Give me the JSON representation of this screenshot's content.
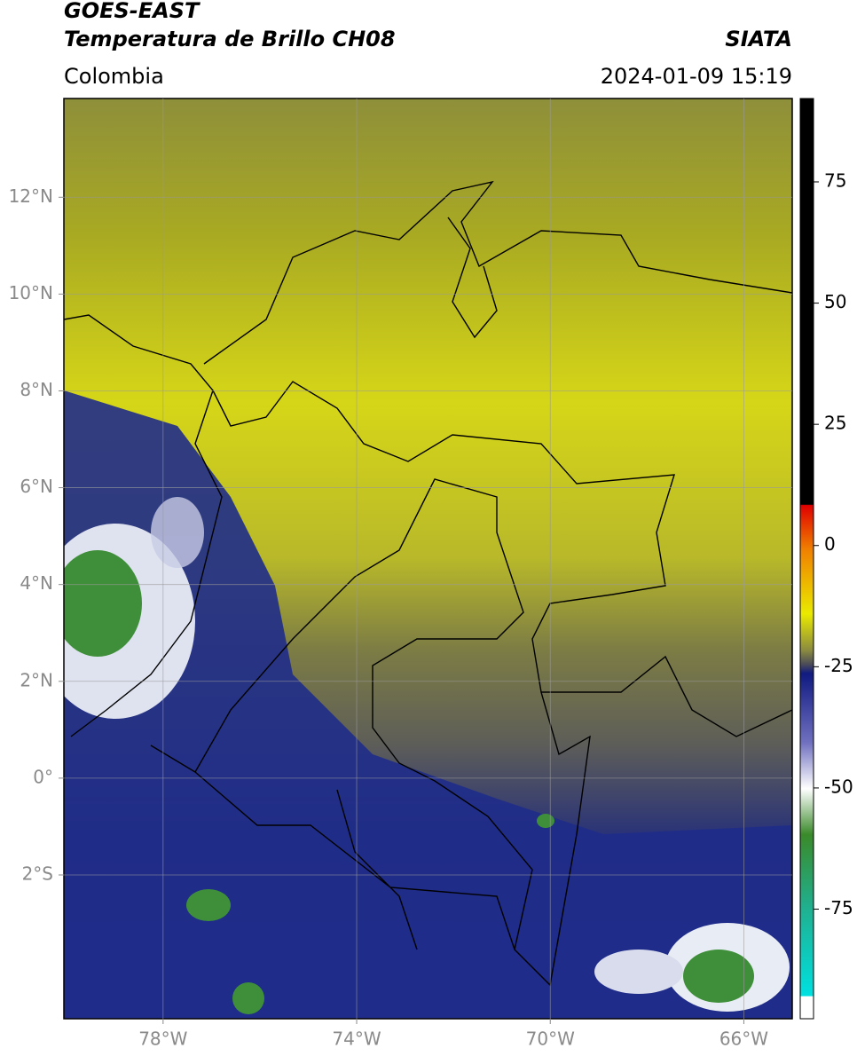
{
  "chart_data": {
    "type": "map",
    "title": "GOES-EAST",
    "subtitle": "Temperatura de Brillo CH08",
    "source": "SIATA",
    "region": "Colombia",
    "datetime": "2024-01-09 15:19",
    "xlim": [
      -80.05,
      -65
    ],
    "ylim": [
      -4.97,
      14.04
    ],
    "xticks": [
      {
        "value": -78,
        "label": "78°W"
      },
      {
        "value": -74,
        "label": "74°W"
      },
      {
        "value": -70,
        "label": "70°W"
      },
      {
        "value": -66,
        "label": "66°W"
      }
    ],
    "yticks": [
      {
        "value": -2,
        "label": "2°S"
      },
      {
        "value": 0,
        "label": "0°"
      },
      {
        "value": 2,
        "label": "2°N"
      },
      {
        "value": 4,
        "label": "4°N"
      },
      {
        "value": 6,
        "label": "6°N"
      },
      {
        "value": 8,
        "label": "8°N"
      },
      {
        "value": 10,
        "label": "10°N"
      },
      {
        "value": 12,
        "label": "12°N"
      }
    ],
    "grid": true,
    "colorbar": {
      "lim": [
        -97.6,
        92.2
      ],
      "ticks": [
        75,
        50,
        25,
        0,
        -25,
        -50,
        -75
      ]
    }
  }
}
